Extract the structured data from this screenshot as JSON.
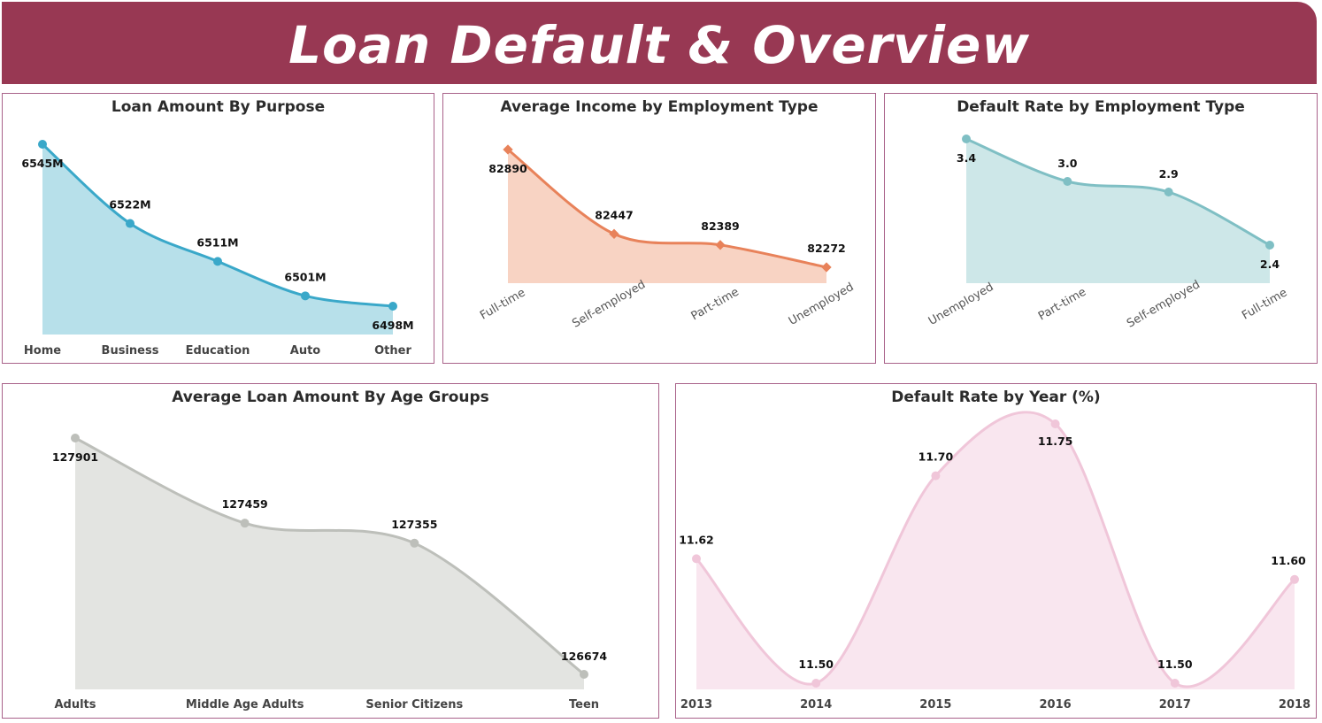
{
  "header": {
    "title": "Loan Default & Overview"
  },
  "colors": {
    "header_bg": "#983853",
    "panel_border": "#a9628a"
  },
  "chart_data": [
    {
      "id": "loan-amount-by-purpose",
      "type": "area",
      "title": "Loan Amount By Purpose",
      "categories": [
        "Home",
        "Business",
        "Education",
        "Auto",
        "Other"
      ],
      "values": [
        6545,
        6522,
        6511,
        6501,
        6498
      ],
      "labels": [
        "6545M",
        "6522M",
        "6511M",
        "6501M",
        "6498M"
      ],
      "line_color": "#3aa8c9",
      "fill_color": "#b7e0ea",
      "tick_rotated": false
    },
    {
      "id": "average-income-by-employment-type",
      "type": "area",
      "title": "Average Income by Employment Type",
      "categories": [
        "Full-time",
        "Self-employed",
        "Part-time",
        "Unemployed"
      ],
      "values": [
        82890,
        82447,
        82389,
        82272
      ],
      "labels": [
        "82890",
        "82447",
        "82389",
        "82272"
      ],
      "line_color": "#e8825a",
      "fill_color": "#f8d3c3",
      "tick_rotated": true
    },
    {
      "id": "default-rate-by-employment-type",
      "type": "area",
      "title": "Default Rate by Employment Type",
      "categories": [
        "Unemployed",
        "Part-time",
        "Self-employed",
        "Full-time"
      ],
      "values": [
        3.4,
        3.0,
        2.9,
        2.4
      ],
      "labels": [
        "3.4",
        "3.0",
        "2.9",
        "2.4"
      ],
      "line_color": "#7fbfc4",
      "fill_color": "#cde7e8",
      "tick_rotated": true
    },
    {
      "id": "average-loan-amount-by-age-groups",
      "type": "area",
      "title": "Average Loan Amount By Age Groups",
      "categories": [
        "Adults",
        "Middle Age Adults",
        "Senior Citizens",
        "Teen"
      ],
      "values": [
        127901,
        127459,
        127355,
        126674
      ],
      "labels": [
        "127901",
        "127459",
        "127355",
        "126674"
      ],
      "line_color": "#bdbfba",
      "fill_color": "#e3e4e1",
      "tick_rotated": false
    },
    {
      "id": "default-rate-by-year",
      "type": "area",
      "title": "Default Rate by Year (%)",
      "categories": [
        "2013",
        "2014",
        "2015",
        "2016",
        "2017",
        "2018"
      ],
      "values": [
        11.62,
        11.5,
        11.7,
        11.75,
        11.5,
        11.6
      ],
      "labels": [
        "11.62",
        "11.50",
        "11.70",
        "11.75",
        "11.50",
        "11.60"
      ],
      "line_color": "#f0c6d9",
      "fill_color": "#f9e6ef",
      "tick_rotated": false
    }
  ]
}
